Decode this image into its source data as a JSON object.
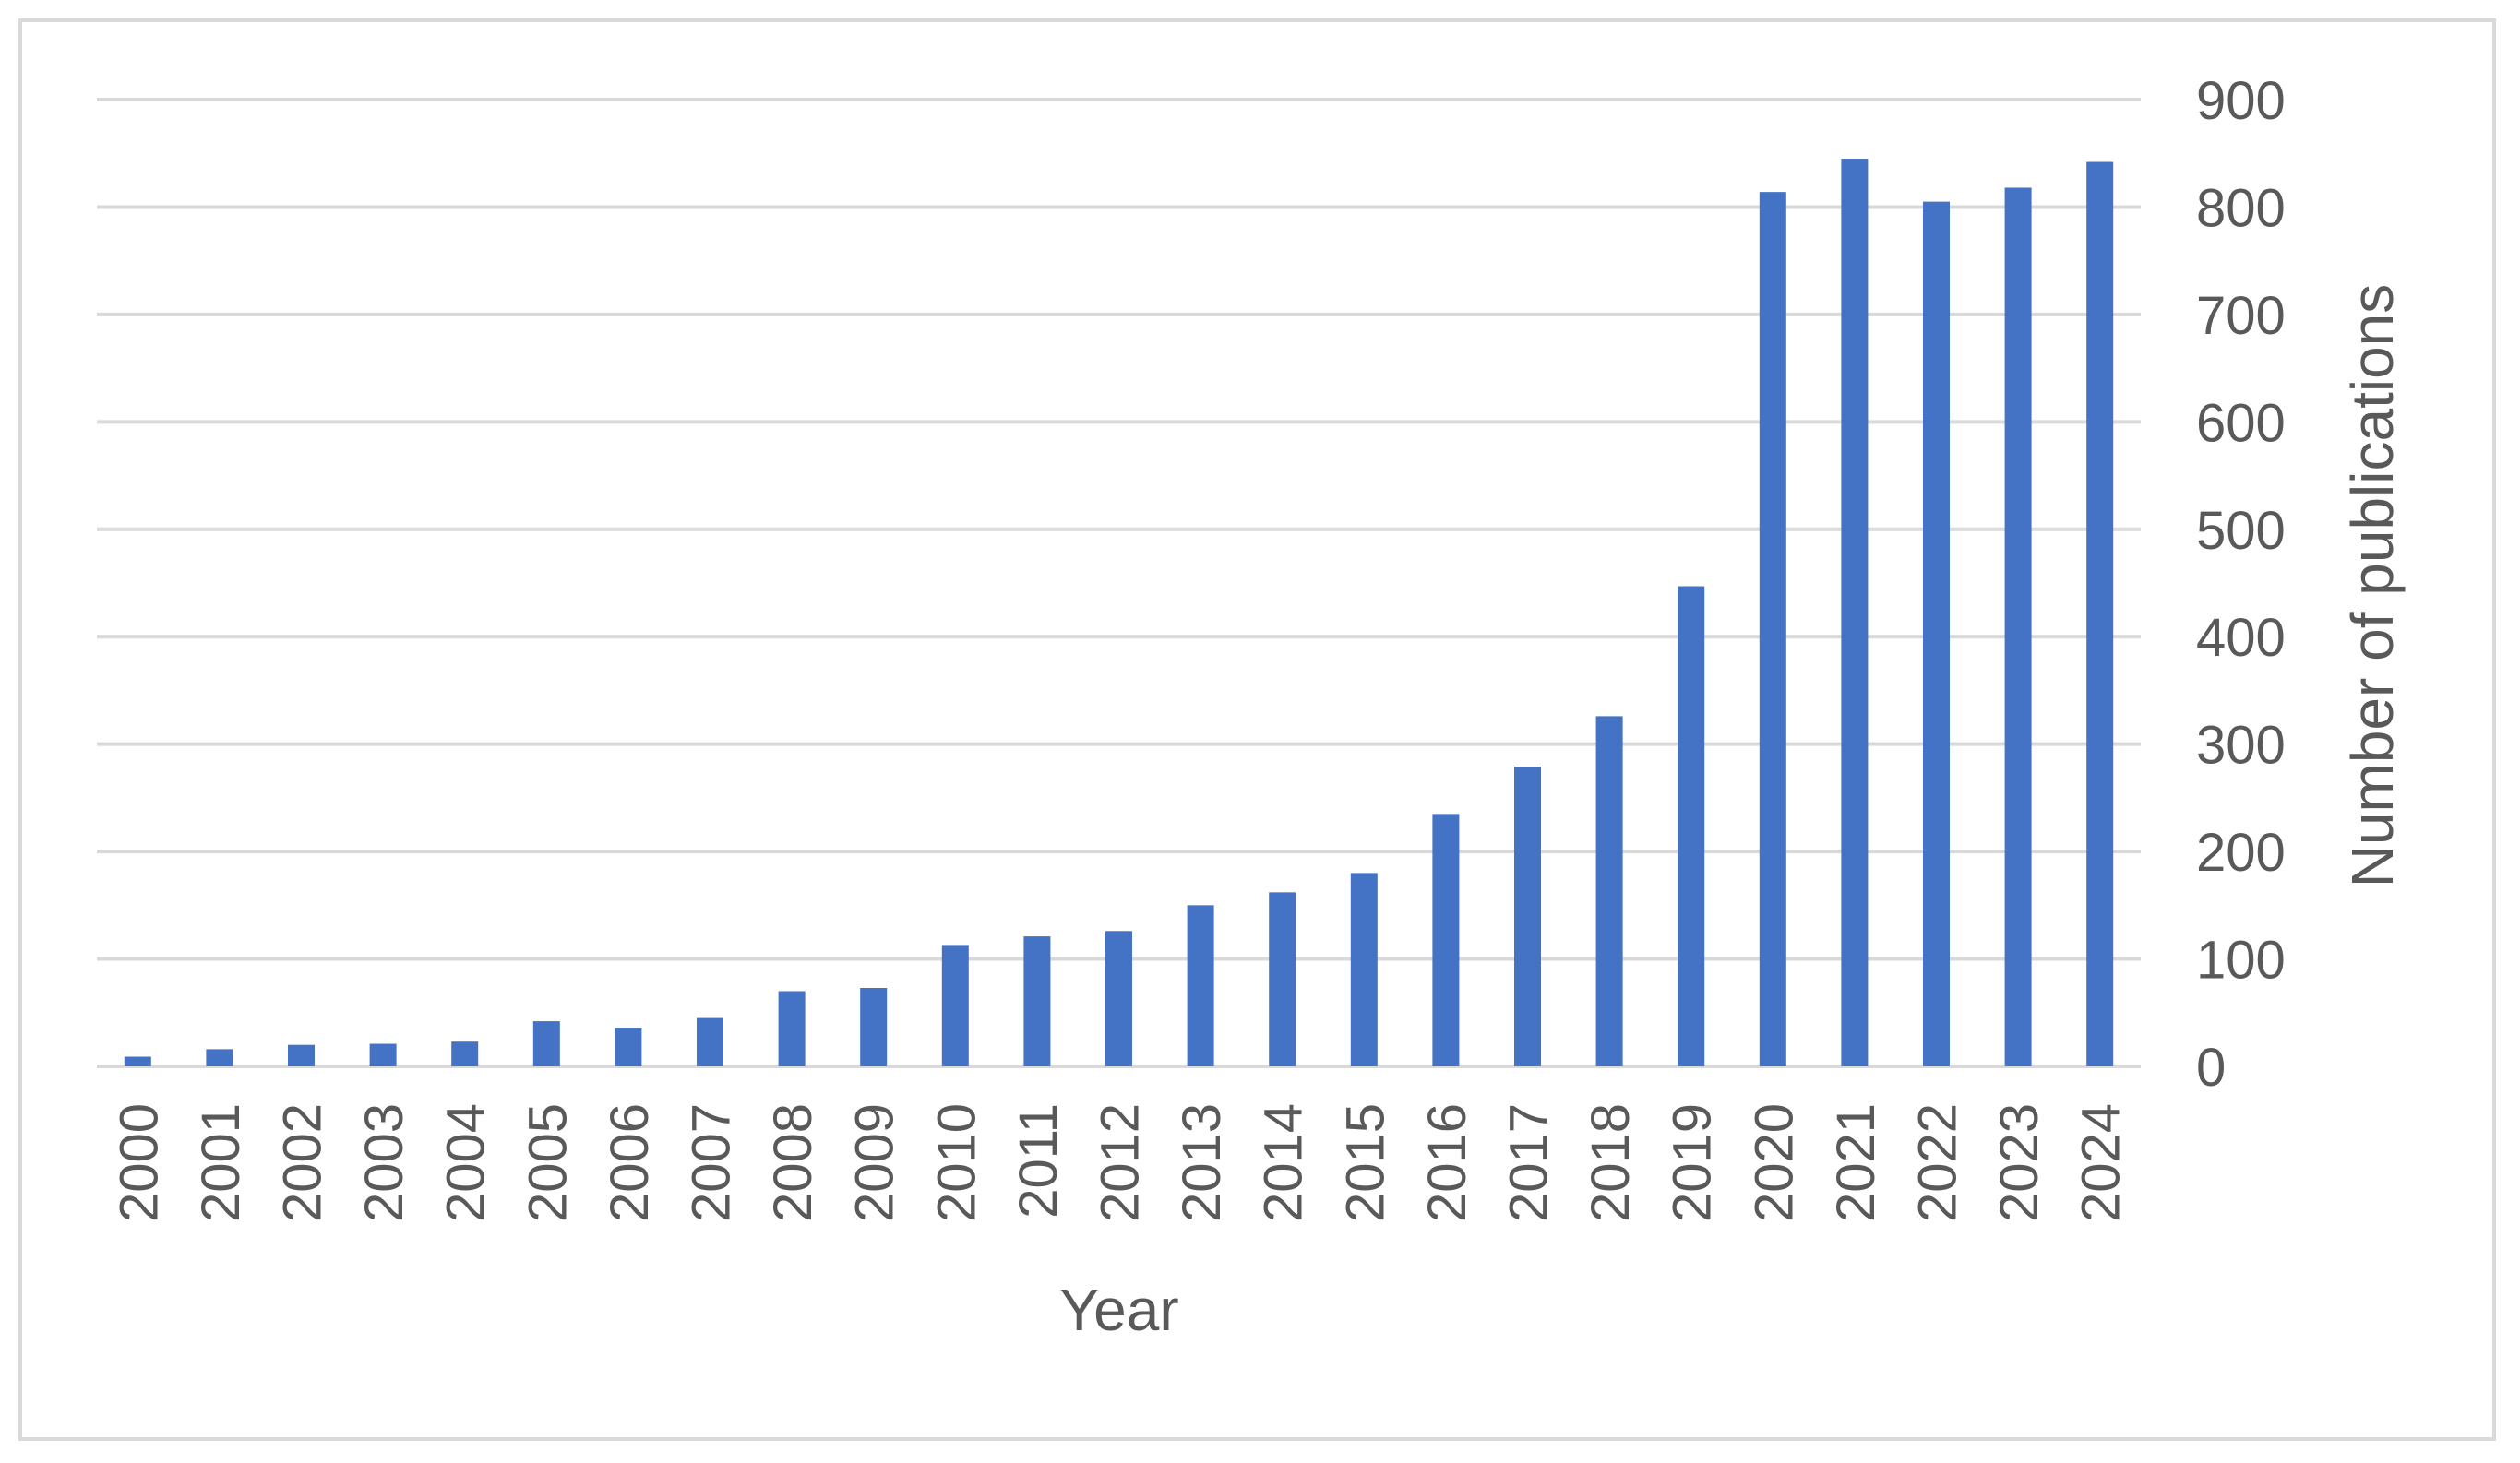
{
  "chart_data": {
    "type": "bar",
    "categories": [
      "2000",
      "2001",
      "2002",
      "2003",
      "2004",
      "2005",
      "2006",
      "2007",
      "2008",
      "2009",
      "2010",
      "2011",
      "2012",
      "2013",
      "2014",
      "2015",
      "2016",
      "2017",
      "2018",
      "2019",
      "2020",
      "2021",
      "2022",
      "2023",
      "2024"
    ],
    "series": [
      {
        "values": [
          9,
          16,
          20,
          21,
          23,
          42,
          36,
          45,
          70,
          73,
          113,
          121,
          126,
          150,
          162,
          180,
          235,
          279,
          326,
          447,
          814,
          845,
          805,
          818,
          842
        ]
      }
    ],
    "title": "",
    "xlabel": "Year",
    "ylabel": "Number of publications",
    "ylim": [
      0,
      900
    ],
    "yticks": [
      "0",
      "100",
      "200",
      "300",
      "400",
      "500",
      "600",
      "700",
      "800",
      "900"
    ],
    "y_axis_side": "right",
    "grid": true,
    "legend": "none",
    "colors": {
      "bar": "#4472C4",
      "grid": "#d9d9d9",
      "text": "#595959",
      "frame": "#d9d9d9"
    }
  }
}
